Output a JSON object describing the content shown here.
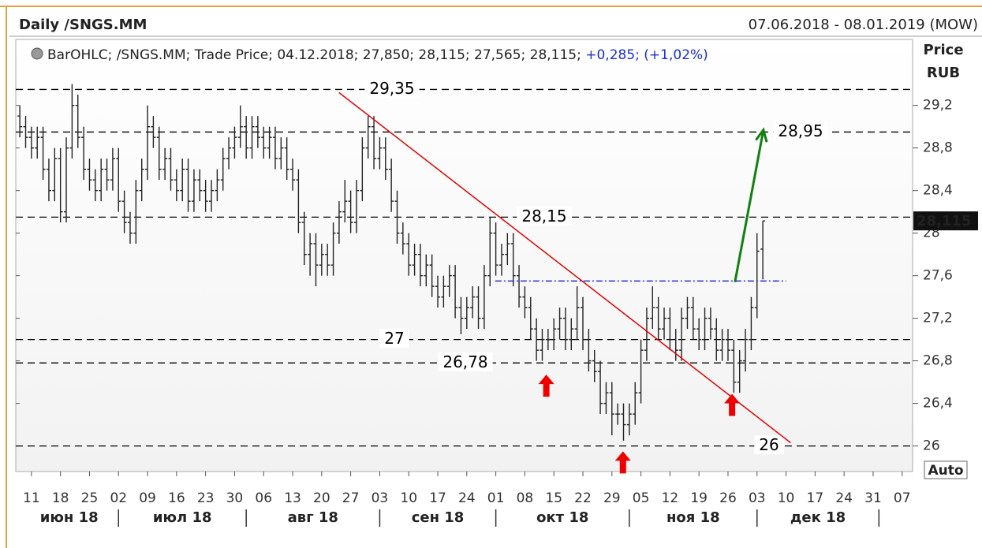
{
  "chart_data": {
    "type": "ohlc",
    "title": "Daily /SNGS.MM",
    "date_range": "07.06.2018 - 08.01.2019 (MOW)",
    "legend_text": "BarOHLC; /SNGS.MM; Trade Price; 04.12.2018; 27,850; 28,115; 27,565; 28,115; ",
    "legend_change": "+0,285; (+1,02%)",
    "y_axis_label": "Price",
    "y_axis_unit": "RUB",
    "auto_button": "Auto",
    "last_price": 28.115,
    "last_price_label": "28,115",
    "color": "#222222",
    "x": [
      -2,
      -1,
      0,
      1,
      2,
      3,
      4,
      5,
      6,
      7,
      8,
      9,
      10,
      11,
      12,
      13,
      14,
      15,
      16,
      17,
      18,
      19,
      20,
      21,
      22,
      23,
      24,
      25,
      26,
      27,
      28,
      29,
      30,
      31,
      32,
      33,
      34,
      35,
      36,
      37,
      38,
      39,
      40,
      41,
      42,
      43,
      44,
      45,
      46,
      47,
      48,
      49,
      50,
      51,
      52,
      53,
      54,
      55,
      56,
      57,
      58,
      59,
      60,
      61,
      62,
      63,
      64,
      65,
      66,
      67,
      68,
      69,
      70,
      71,
      72,
      73,
      74,
      75,
      76,
      77,
      78,
      79,
      80,
      81,
      82,
      83,
      84,
      85,
      86,
      87,
      88,
      89,
      90,
      91,
      92,
      93,
      94,
      95,
      96,
      97,
      98,
      99,
      100,
      101,
      102,
      103,
      104,
      105,
      106,
      107,
      108,
      109,
      110,
      111,
      112,
      113,
      114,
      115,
      116,
      117,
      118,
      119,
      120,
      121,
      122,
      123,
      124,
      125,
      126
    ],
    "open": [
      29.1,
      29.0,
      28.9,
      28.8,
      28.9,
      28.6,
      28.4,
      28.7,
      28.2,
      28.8,
      29.2,
      28.9,
      28.6,
      28.5,
      28.4,
      28.6,
      28.5,
      28.7,
      28.3,
      28.1,
      28.0,
      28.4,
      28.6,
      29.0,
      28.9,
      28.6,
      28.7,
      28.5,
      28.4,
      28.6,
      28.3,
      28.5,
      28.4,
      28.3,
      28.4,
      28.5,
      28.7,
      28.8,
      28.9,
      29.0,
      28.8,
      29.0,
      28.9,
      28.8,
      28.9,
      28.7,
      28.8,
      28.6,
      28.5,
      28.1,
      27.8,
      27.9,
      27.7,
      27.8,
      27.7,
      28.0,
      28.2,
      28.3,
      28.1,
      28.4,
      28.8,
      29.0,
      28.7,
      28.8,
      28.6,
      28.3,
      28.0,
      27.9,
      27.7,
      27.8,
      27.6,
      27.7,
      27.5,
      27.4,
      27.5,
      27.6,
      27.3,
      27.2,
      27.3,
      27.4,
      27.2,
      27.6,
      28.0,
      27.7,
      27.8,
      27.9,
      27.6,
      27.4,
      27.3,
      27.1,
      26.9,
      27.0,
      27.0,
      27.1,
      27.2,
      27.0,
      27.1,
      27.3,
      27.0,
      26.8,
      26.7,
      26.4,
      26.5,
      26.3,
      26.3,
      26.2,
      26.3,
      26.5,
      26.9,
      27.2,
      27.3,
      27.1,
      27.2,
      27.0,
      26.9,
      27.2,
      27.3,
      27.1,
      27.0,
      27.2,
      27.1,
      26.9,
      27.0,
      26.9,
      26.6,
      26.8,
      27.0,
      27.3,
      27.85
    ],
    "high": [
      29.2,
      29.1,
      29.0,
      29.0,
      29.0,
      28.7,
      28.8,
      28.8,
      28.9,
      29.4,
      29.3,
      29.0,
      28.7,
      28.6,
      28.7,
      28.7,
      28.8,
      28.8,
      28.4,
      28.2,
      28.5,
      28.7,
      29.2,
      29.1,
      29.0,
      28.8,
      28.8,
      28.6,
      28.7,
      28.7,
      28.6,
      28.6,
      28.5,
      28.5,
      28.6,
      28.8,
      28.9,
      29.0,
      29.2,
      29.1,
      29.1,
      29.1,
      29.0,
      29.0,
      29.0,
      28.9,
      28.9,
      28.7,
      28.6,
      28.2,
      28.0,
      28.0,
      27.9,
      27.9,
      28.1,
      28.3,
      28.5,
      28.4,
      28.5,
      28.9,
      29.1,
      29.1,
      28.9,
      28.9,
      28.7,
      28.4,
      28.1,
      28.0,
      27.9,
      27.9,
      27.8,
      27.8,
      27.6,
      27.6,
      27.7,
      27.7,
      27.4,
      27.4,
      27.5,
      27.5,
      27.7,
      28.15,
      28.1,
      27.9,
      28.0,
      28.0,
      27.7,
      27.5,
      27.4,
      27.2,
      27.1,
      27.1,
      27.2,
      27.3,
      27.3,
      27.2,
      27.5,
      27.4,
      27.1,
      26.9,
      26.8,
      26.6,
      26.6,
      26.4,
      26.4,
      26.4,
      26.6,
      27.0,
      27.3,
      27.5,
      27.4,
      27.3,
      27.3,
      27.1,
      27.3,
      27.4,
      27.4,
      27.2,
      27.3,
      27.3,
      27.2,
      27.1,
      27.1,
      27.0,
      26.9,
      27.1,
      27.4,
      28.0,
      28.115
    ],
    "low": [
      28.9,
      28.8,
      28.7,
      28.7,
      28.5,
      28.3,
      28.3,
      28.1,
      28.1,
      28.7,
      28.8,
      28.5,
      28.4,
      28.3,
      28.3,
      28.4,
      28.4,
      28.2,
      28.0,
      27.9,
      27.9,
      28.3,
      28.5,
      28.8,
      28.5,
      28.5,
      28.4,
      28.3,
      28.3,
      28.2,
      28.2,
      28.3,
      28.2,
      28.2,
      28.3,
      28.4,
      28.6,
      28.7,
      28.8,
      28.7,
      28.7,
      28.8,
      28.7,
      28.7,
      28.6,
      28.6,
      28.5,
      28.4,
      28.0,
      27.7,
      27.6,
      27.5,
      27.6,
      27.6,
      27.6,
      27.9,
      28.1,
      28.0,
      28.0,
      28.3,
      28.7,
      28.6,
      28.6,
      28.5,
      28.2,
      27.9,
      27.8,
      27.6,
      27.6,
      27.5,
      27.5,
      27.4,
      27.3,
      27.3,
      27.4,
      27.2,
      27.05,
      27.1,
      27.2,
      27.1,
      27.1,
      27.5,
      27.6,
      27.6,
      27.7,
      27.5,
      27.3,
      27.2,
      27.0,
      26.8,
      26.8,
      26.9,
      26.9,
      27.0,
      26.9,
      26.9,
      27.0,
      26.9,
      26.7,
      26.6,
      26.3,
      26.3,
      26.1,
      26.2,
      26.05,
      26.1,
      26.2,
      26.4,
      26.8,
      27.1,
      27.0,
      27.0,
      26.9,
      26.8,
      26.8,
      27.1,
      27.0,
      26.9,
      26.9,
      27.0,
      26.8,
      26.8,
      26.8,
      26.5,
      26.5,
      26.7,
      26.9,
      27.2,
      27.565
    ],
    "close": [
      29.0,
      28.9,
      28.8,
      28.9,
      28.6,
      28.4,
      28.7,
      28.2,
      28.8,
      29.2,
      28.9,
      28.6,
      28.5,
      28.4,
      28.6,
      28.5,
      28.7,
      28.3,
      28.1,
      28.0,
      28.4,
      28.6,
      29.0,
      28.9,
      28.6,
      28.7,
      28.5,
      28.4,
      28.6,
      28.3,
      28.5,
      28.4,
      28.3,
      28.4,
      28.5,
      28.7,
      28.8,
      28.9,
      29.0,
      28.8,
      29.0,
      28.9,
      28.8,
      28.9,
      28.7,
      28.8,
      28.6,
      28.5,
      28.1,
      27.8,
      27.9,
      27.7,
      27.8,
      27.7,
      28.0,
      28.2,
      28.3,
      28.1,
      28.4,
      28.8,
      29.0,
      28.7,
      28.8,
      28.6,
      28.3,
      28.0,
      27.9,
      27.7,
      27.8,
      27.6,
      27.7,
      27.5,
      27.4,
      27.5,
      27.6,
      27.3,
      27.2,
      27.3,
      27.4,
      27.2,
      27.6,
      28.0,
      27.7,
      27.8,
      27.9,
      27.6,
      27.4,
      27.3,
      27.1,
      26.9,
      27.0,
      27.0,
      27.1,
      27.2,
      27.0,
      27.1,
      27.3,
      27.0,
      26.8,
      26.7,
      26.4,
      26.5,
      26.3,
      26.3,
      26.2,
      26.3,
      26.5,
      26.9,
      27.2,
      27.3,
      27.1,
      27.2,
      27.0,
      26.9,
      27.2,
      27.3,
      27.1,
      27.0,
      27.2,
      27.1,
      26.9,
      27.0,
      26.9,
      26.6,
      26.8,
      27.0,
      27.3,
      27.83,
      28.115
    ],
    "xlim": [
      -2.7,
      151.8
    ],
    "ylim": [
      25.76,
      29.82
    ],
    "xticks": [
      {
        "value": 0,
        "label": "11"
      },
      {
        "value": 5,
        "label": "18"
      },
      {
        "value": 10,
        "label": "25"
      },
      {
        "value": 15,
        "label": "02"
      },
      {
        "value": 20,
        "label": "09"
      },
      {
        "value": 25,
        "label": "16"
      },
      {
        "value": 30,
        "label": "23"
      },
      {
        "value": 35,
        "label": "30"
      },
      {
        "value": 40,
        "label": "06"
      },
      {
        "value": 45,
        "label": "13"
      },
      {
        "value": 50,
        "label": "20"
      },
      {
        "value": 55,
        "label": "27"
      },
      {
        "value": 60,
        "label": "03"
      },
      {
        "value": 65,
        "label": "10"
      },
      {
        "value": 70,
        "label": "17"
      },
      {
        "value": 75,
        "label": "24"
      },
      {
        "value": 80,
        "label": "01"
      },
      {
        "value": 85,
        "label": "08"
      },
      {
        "value": 90,
        "label": "15"
      },
      {
        "value": 95,
        "label": "22"
      },
      {
        "value": 100,
        "label": "29"
      },
      {
        "value": 105,
        "label": "05"
      },
      {
        "value": 110,
        "label": "12"
      },
      {
        "value": 115,
        "label": "19"
      },
      {
        "value": 120,
        "label": "26"
      },
      {
        "value": 125,
        "label": "03"
      },
      {
        "value": 130,
        "label": "10"
      },
      {
        "value": 135,
        "label": "17"
      },
      {
        "value": 140,
        "label": "24"
      },
      {
        "value": 145,
        "label": "31"
      },
      {
        "value": 150,
        "label": "07"
      }
    ],
    "yticks": [
      26,
      {
        "value": 26.4,
        "label": "26,4"
      },
      {
        "value": 26.8,
        "label": "26,8"
      },
      {
        "value": 27.2,
        "label": "27,2"
      },
      {
        "value": 27.6,
        "label": "27,6"
      },
      28,
      {
        "value": 28.4,
        "label": "28,4"
      },
      {
        "value": 28.8,
        "label": "28,8"
      },
      {
        "value": 29.2,
        "label": "29,2"
      }
    ],
    "months": [
      {
        "label": "июн 18",
        "start": -2,
        "end": 15
      },
      {
        "label": "июл 18",
        "start": 15,
        "end": 37
      },
      {
        "label": "авг 18",
        "start": 37,
        "end": 60
      },
      {
        "label": "сен 18",
        "start": 60,
        "end": 80
      },
      {
        "label": "окт 18",
        "start": 80,
        "end": 103
      },
      {
        "label": "ноя 18",
        "start": 103,
        "end": 125
      },
      {
        "label": "дек 18",
        "start": 125,
        "end": 146
      }
    ],
    "levels": [
      {
        "value": 29.35,
        "label": "29,35"
      },
      {
        "value": 28.95,
        "label": "28,95"
      },
      {
        "value": 28.15,
        "label": "28,15"
      },
      {
        "value": 27,
        "label": "27"
      },
      {
        "value": 26.78,
        "label": "26,78"
      },
      {
        "value": 26,
        "label": "26"
      }
    ],
    "trend_line": {
      "x": [
        53,
        130.8
      ],
      "y": [
        29.32,
        26.03
      ],
      "color": "#e00000"
    },
    "neckline": {
      "x": [
        79.9,
        130
      ],
      "y": [
        27.55,
        27.55
      ],
      "color": "#2030d0"
    },
    "target_arrow": {
      "x": [
        121.2,
        126.1
      ],
      "y": [
        27.54,
        28.97
      ],
      "color": "#108010"
    },
    "low_markers": {
      "x": [
        88.7,
        101.9,
        120.7
      ],
      "y": [
        26.67,
        25.95,
        26.49
      ],
      "color": "#ee0000"
    }
  }
}
